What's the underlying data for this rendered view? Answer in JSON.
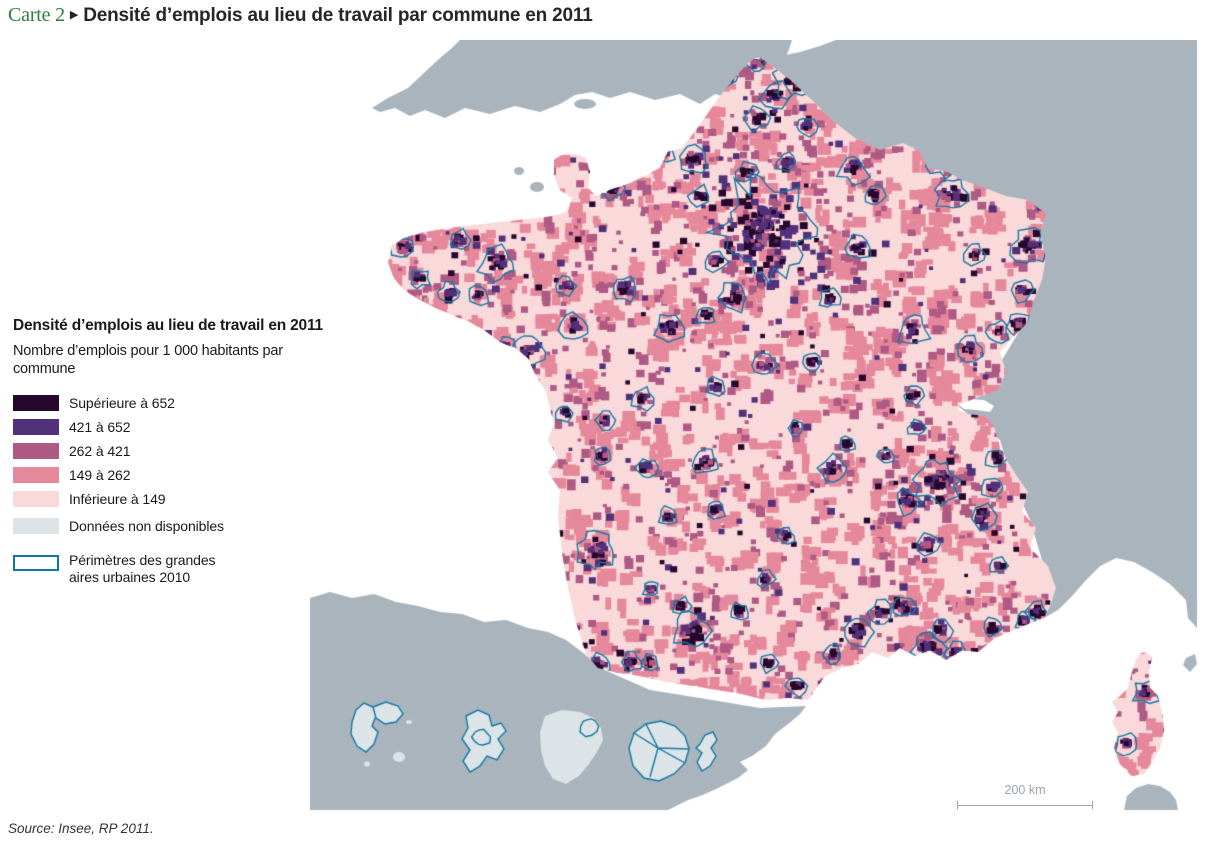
{
  "figure": {
    "number": "Carte 2",
    "arrow": "▶",
    "title": "Densité d’emplois au lieu de travail par commune en 2011",
    "source": "Source: Insee, RP 2011."
  },
  "legend": {
    "title": "Densité d’emplois au lieu de travail en 2011",
    "subtitle": "Nombre d’emplois pour 1 000 habitants par commune",
    "classes": [
      {
        "label": "Supérieure à 652",
        "color": "#26082e"
      },
      {
        "label": "421 à 652",
        "color": "#52317b"
      },
      {
        "label": "262 à 421",
        "color": "#ae5a84"
      },
      {
        "label": "149 à 262",
        "color": "#e6889b"
      },
      {
        "label": "Inférieure à 149",
        "color": "#f9d9da"
      },
      {
        "label": "Données non disponibles",
        "color": "#dce4e7"
      }
    ],
    "outline": {
      "label_line1": "Périmètres des grandes",
      "label_line2": "aires urbaines 2010",
      "stroke_color": "#0e76a3"
    }
  },
  "map": {
    "scale_label": "200 km",
    "sea_color": "#ffffff",
    "foreign_land_color": "#a9b4bd",
    "base_color": "#f9d9da",
    "no_data_color": "#dce4e7",
    "urban_outline_color": "#1578a4",
    "scale_bar_color": "#9aa5ae"
  }
}
